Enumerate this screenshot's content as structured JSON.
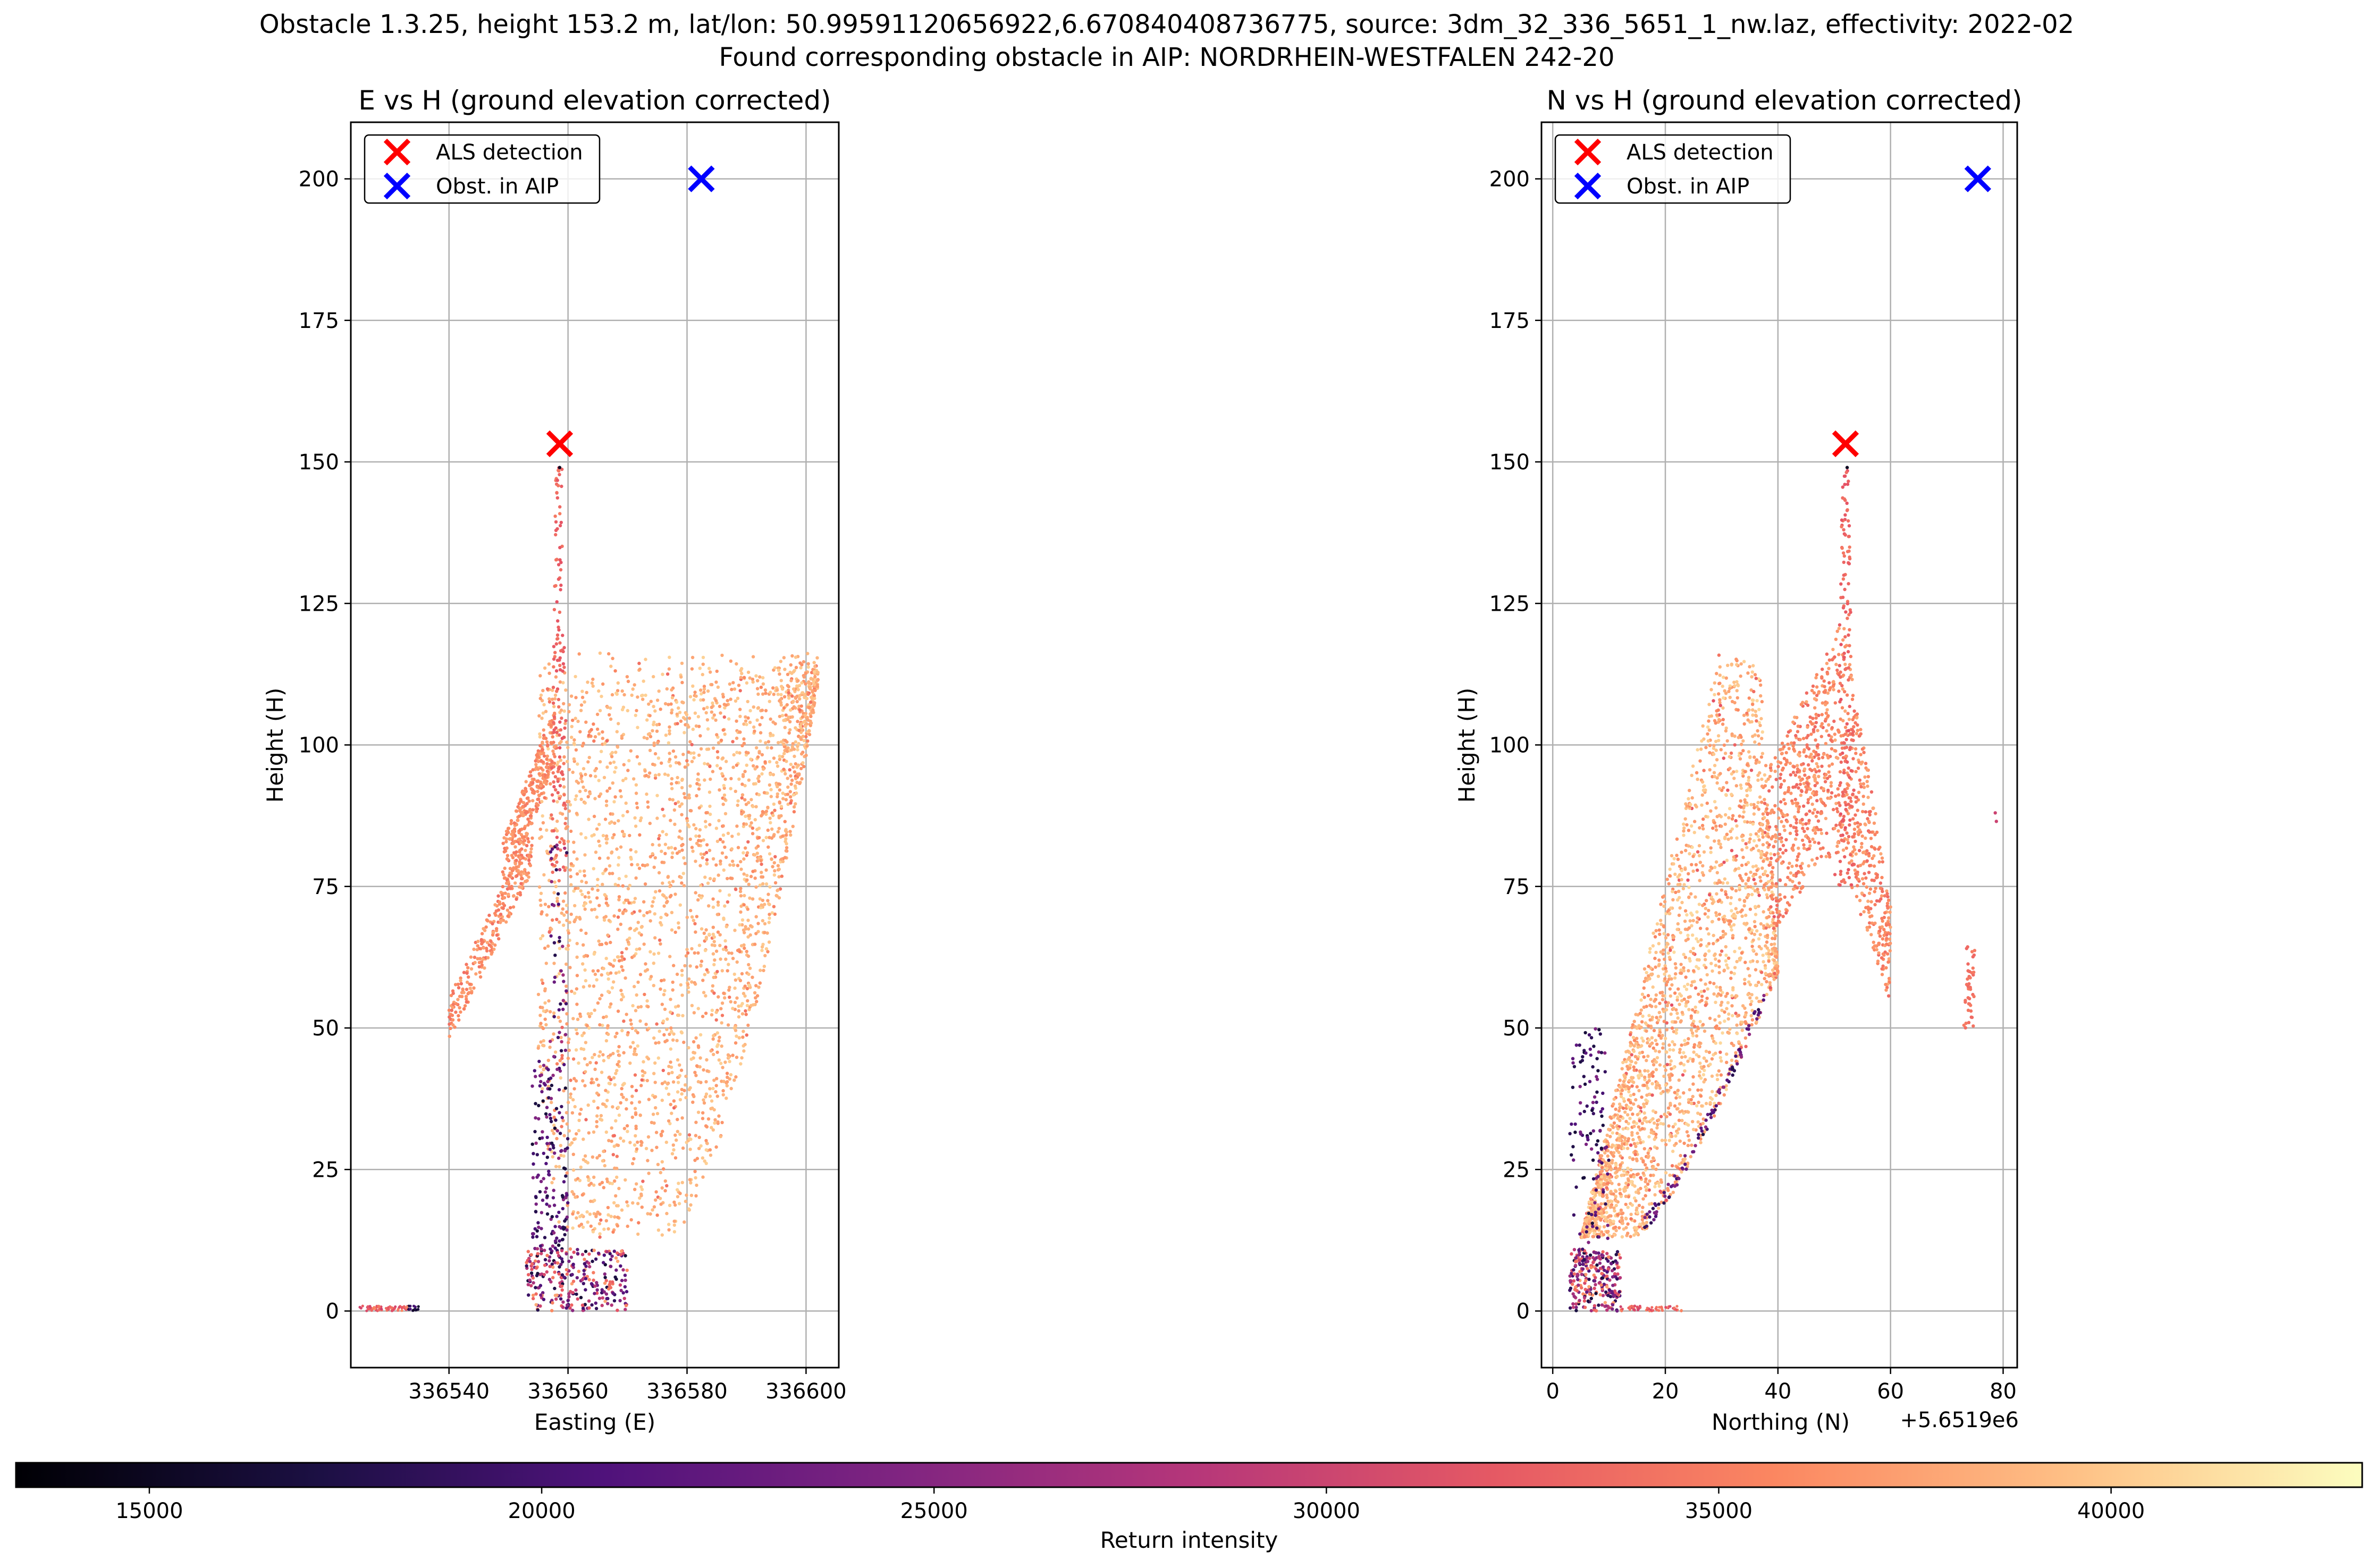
{
  "figure": {
    "suptitle_line1": "Obstacle 1.3.25, height 153.2 m, lat/lon: 50.99591120656922,6.670840408736775, source: 3dm_32_336_5651_1_nw.laz, effectivity: 2022-02",
    "suptitle_line2": "Found corresponding obstacle in AIP: NORDRHEIN-WESTFALEN 242-20"
  },
  "colorbar": {
    "label": "Return intensity",
    "colormap": "magma",
    "range": [
      13300,
      43200
    ],
    "ticks": [
      "15000",
      "20000",
      "25000",
      "30000",
      "35000",
      "40000"
    ],
    "tick_values": [
      15000,
      20000,
      25000,
      30000,
      35000,
      40000
    ]
  },
  "legend": {
    "als": "ALS detection",
    "aip": "Obst. in AIP",
    "als_color": "#ff0000",
    "aip_color": "#0000ff",
    "placement": "upper-left"
  },
  "chart_data": [
    {
      "type": "scatter",
      "title": "E vs H (ground elevation corrected)",
      "xlabel": "Easting (E)",
      "ylabel": "Height (H)",
      "xlim": [
        336523.5,
        336605.5
      ],
      "ylim": [
        -10,
        210
      ],
      "xticks": [
        336540,
        336560,
        336580,
        336600
      ],
      "xtick_labels": [
        "336540",
        "336560",
        "336580",
        "336600"
      ],
      "yticks": [
        0,
        25,
        50,
        75,
        100,
        125,
        150,
        175,
        200
      ],
      "ytick_labels": [
        "0",
        "25",
        "50",
        "75",
        "100",
        "125",
        "150",
        "175",
        "200"
      ],
      "grid": true,
      "offset_label": "",
      "als_detection": {
        "x": 336558.6,
        "y": 153.2
      },
      "aip_obstacle": {
        "x": 336582.4,
        "y": 200
      },
      "point_cloud_regions": [
        {
          "desc": "ground strip",
          "x": [
            336525,
            336535
          ],
          "y": [
            0,
            1
          ],
          "intensity": 34000
        },
        {
          "desc": "main facade",
          "x": [
            336555,
            336602
          ],
          "y": [
            13,
            117
          ],
          "intensity": 38000
        },
        {
          "desc": "left slope",
          "x": [
            336540,
            336558
          ],
          "y": [
            50,
            100
          ],
          "intensity": 36000
        },
        {
          "desc": "mast",
          "x": [
            336557,
            336560
          ],
          "y": [
            75,
            149
          ],
          "intensity": 34000
        },
        {
          "desc": "low returns",
          "x": [
            336553,
            336570
          ],
          "y": [
            0,
            45
          ],
          "intensity": 20000
        }
      ]
    },
    {
      "type": "scatter",
      "title": "N vs H (ground elevation corrected)",
      "xlabel": "Northing (N)",
      "ylabel": "Height (H)",
      "xlim": [
        -2,
        82.5
      ],
      "ylim": [
        -10,
        210
      ],
      "xticks": [
        0,
        20,
        40,
        60,
        80
      ],
      "xtick_labels": [
        "0",
        "20",
        "40",
        "60",
        "80"
      ],
      "yticks": [
        0,
        25,
        50,
        75,
        100,
        125,
        150,
        175,
        200
      ],
      "ytick_labels": [
        "0",
        "25",
        "50",
        "75",
        "100",
        "125",
        "150",
        "175",
        "200"
      ],
      "grid": true,
      "offset_label": "+5.6519e6",
      "als_detection": {
        "x": 52,
        "y": 153.2
      },
      "aip_obstacle": {
        "x": 75.5,
        "y": 200
      },
      "point_cloud_regions": [
        {
          "desc": "facade wedge",
          "x": [
            5,
            40
          ],
          "y": [
            13,
            117
          ],
          "intensity": 38000
        },
        {
          "desc": "right section",
          "x": [
            38,
            60
          ],
          "y": [
            55,
            122
          ],
          "intensity": 35000
        },
        {
          "desc": "mast",
          "x": [
            50,
            53
          ],
          "y": [
            75,
            149
          ],
          "intensity": 34000
        },
        {
          "desc": "low returns",
          "x": [
            3,
            13
          ],
          "y": [
            0,
            50
          ],
          "intensity": 20000
        },
        {
          "desc": "outliers",
          "x": [
            73,
            79
          ],
          "y": [
            50,
            88
          ],
          "intensity": 33000
        }
      ]
    }
  ]
}
